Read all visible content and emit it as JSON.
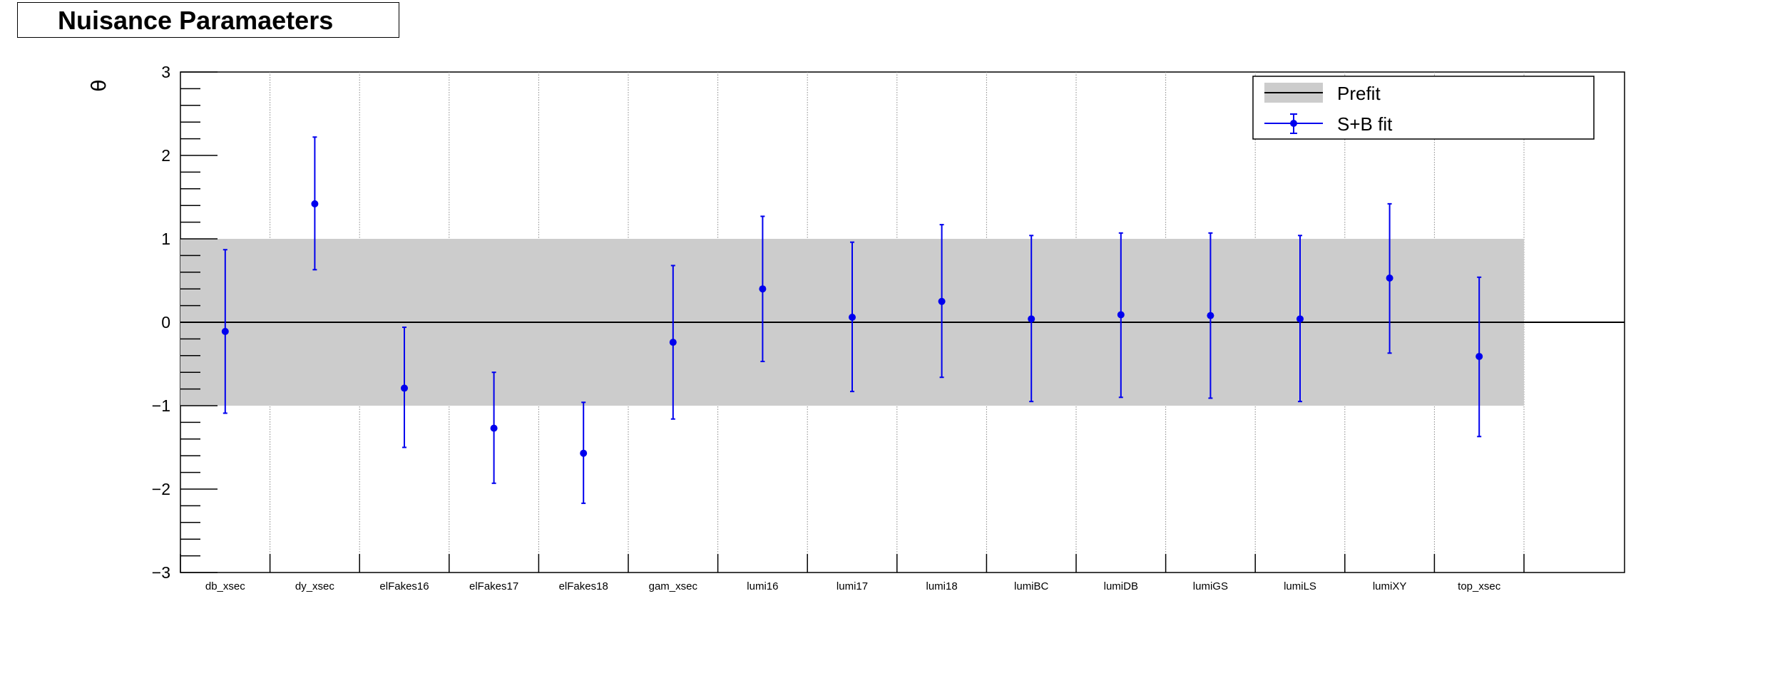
{
  "chart_data": {
    "type": "scatter",
    "title": "Nuisance Paramaeters",
    "xlabel": "",
    "ylabel": "θ",
    "ylim": [
      -3,
      3
    ],
    "y_ticks": [
      -3,
      -2,
      -1,
      0,
      1,
      2,
      3
    ],
    "y_tick_labels": [
      "−3",
      "−2",
      "−1",
      "0",
      "1",
      "2",
      "3"
    ],
    "grid_x": true,
    "grid_y": false,
    "legend_position": "top-right",
    "legend": {
      "prefit_label": "Prefit",
      "fit_label": "S+B fit"
    },
    "categories": [
      "db_xsec",
      "dy_xsec",
      "elFakes16",
      "elFakes17",
      "elFakes18",
      "gam_xsec",
      "lumi16",
      "lumi17",
      "lumi18",
      "lumiBC",
      "lumiDB",
      "lumiGS",
      "lumiLS",
      "lumiXY",
      "top_xsec"
    ],
    "prefit_band": {
      "name": "Prefit",
      "low": -1,
      "high": 1,
      "central": 0,
      "color": "#cccccc"
    },
    "series": [
      {
        "name": "S+B fit",
        "color": "#0000ee",
        "values": [
          -0.11,
          1.42,
          -0.79,
          -1.27,
          -1.57,
          -0.24,
          0.4,
          0.06,
          0.25,
          0.04,
          0.09,
          0.08,
          0.04,
          0.53,
          -0.41
        ],
        "error_low": [
          -1.09,
          0.63,
          -1.5,
          -1.93,
          -2.17,
          -1.16,
          -0.47,
          -0.83,
          -0.66,
          -0.95,
          -0.9,
          -0.91,
          -0.95,
          -0.37,
          -1.37
        ],
        "error_high": [
          0.87,
          2.22,
          -0.06,
          -0.6,
          -0.96,
          0.68,
          1.27,
          0.96,
          1.17,
          1.04,
          1.07,
          1.07,
          1.04,
          1.42,
          0.54
        ]
      }
    ]
  }
}
